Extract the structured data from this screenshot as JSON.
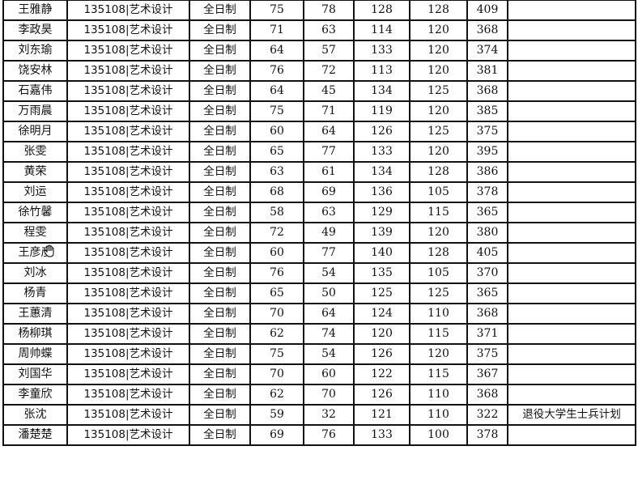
{
  "rows": [
    {
      "name": "王雅静",
      "major": "135108|艺术设计",
      "mode": "全日制",
      "s1": "75",
      "s2": "78",
      "s3": "128",
      "s4": "128",
      "total": "409",
      "note": ""
    },
    {
      "name": "李政昊",
      "major": "135108|艺术设计",
      "mode": "全日制",
      "s1": "71",
      "s2": "63",
      "s3": "114",
      "s4": "120",
      "total": "368",
      "note": ""
    },
    {
      "name": "刘东瑜",
      "major": "135108|艺术设计",
      "mode": "全日制",
      "s1": "64",
      "s2": "57",
      "s3": "133",
      "s4": "120",
      "total": "374",
      "note": ""
    },
    {
      "name": "饶安林",
      "major": "135108|艺术设计",
      "mode": "全日制",
      "s1": "76",
      "s2": "72",
      "s3": "113",
      "s4": "120",
      "total": "381",
      "note": ""
    },
    {
      "name": "石嘉伟",
      "major": "135108|艺术设计",
      "mode": "全日制",
      "s1": "64",
      "s2": "45",
      "s3": "134",
      "s4": "125",
      "total": "368",
      "note": ""
    },
    {
      "name": "万雨晨",
      "major": "135108|艺术设计",
      "mode": "全日制",
      "s1": "75",
      "s2": "71",
      "s3": "119",
      "s4": "120",
      "total": "385",
      "note": ""
    },
    {
      "name": "徐明月",
      "major": "135108|艺术设计",
      "mode": "全日制",
      "s1": "60",
      "s2": "64",
      "s3": "126",
      "s4": "125",
      "total": "375",
      "note": ""
    },
    {
      "name": "张雯",
      "major": "135108|艺术设计",
      "mode": "全日制",
      "s1": "65",
      "s2": "77",
      "s3": "133",
      "s4": "120",
      "total": "395",
      "note": ""
    },
    {
      "name": "黄荣",
      "major": "135108|艺术设计",
      "mode": "全日制",
      "s1": "63",
      "s2": "61",
      "s3": "134",
      "s4": "128",
      "total": "386",
      "note": ""
    },
    {
      "name": "刘运",
      "major": "135108|艺术设计",
      "mode": "全日制",
      "s1": "68",
      "s2": "69",
      "s3": "136",
      "s4": "105",
      "total": "378",
      "note": ""
    },
    {
      "name": "徐竹馨",
      "major": "135108|艺术设计",
      "mode": "全日制",
      "s1": "58",
      "s2": "63",
      "s3": "129",
      "s4": "115",
      "total": "365",
      "note": ""
    },
    {
      "name": "程雯",
      "major": "135108|艺术设计",
      "mode": "全日制",
      "s1": "72",
      "s2": "49",
      "s3": "139",
      "s4": "120",
      "total": "380",
      "note": ""
    },
    {
      "name": "王彦彦",
      "major": "135108|艺术设计",
      "mode": "全日制",
      "s1": "60",
      "s2": "77",
      "s3": "140",
      "s4": "128",
      "total": "405",
      "note": ""
    },
    {
      "name": "刘冰",
      "major": "135108|艺术设计",
      "mode": "全日制",
      "s1": "76",
      "s2": "54",
      "s3": "135",
      "s4": "105",
      "total": "370",
      "note": ""
    },
    {
      "name": "杨青",
      "major": "135108|艺术设计",
      "mode": "全日制",
      "s1": "65",
      "s2": "50",
      "s3": "125",
      "s4": "125",
      "total": "365",
      "note": ""
    },
    {
      "name": "王蕙清",
      "major": "135108|艺术设计",
      "mode": "全日制",
      "s1": "70",
      "s2": "64",
      "s3": "124",
      "s4": "110",
      "total": "368",
      "note": ""
    },
    {
      "name": "杨柳琪",
      "major": "135108|艺术设计",
      "mode": "全日制",
      "s1": "62",
      "s2": "74",
      "s3": "120",
      "s4": "115",
      "total": "371",
      "note": ""
    },
    {
      "name": "周帅蝶",
      "major": "135108|艺术设计",
      "mode": "全日制",
      "s1": "75",
      "s2": "54",
      "s3": "126",
      "s4": "120",
      "total": "375",
      "note": ""
    },
    {
      "name": "刘国华",
      "major": "135108|艺术设计",
      "mode": "全日制",
      "s1": "70",
      "s2": "60",
      "s3": "122",
      "s4": "115",
      "total": "367",
      "note": ""
    },
    {
      "name": "李童欣",
      "major": "135108|艺术设计",
      "mode": "全日制",
      "s1": "62",
      "s2": "70",
      "s3": "126",
      "s4": "110",
      "total": "368",
      "note": ""
    },
    {
      "name": "张沈",
      "major": "135108|艺术设计",
      "mode": "全日制",
      "s1": "59",
      "s2": "32",
      "s3": "121",
      "s4": "110",
      "total": "322",
      "note": "退役大学生士兵计划"
    },
    {
      "name": "潘楚楚",
      "major": "135108|艺术设计",
      "mode": "全日制",
      "s1": "69",
      "s2": "76",
      "s3": "133",
      "s4": "100",
      "total": "378",
      "note": ""
    }
  ],
  "cursor": {
    "icon": "hand-pointer-icon"
  }
}
